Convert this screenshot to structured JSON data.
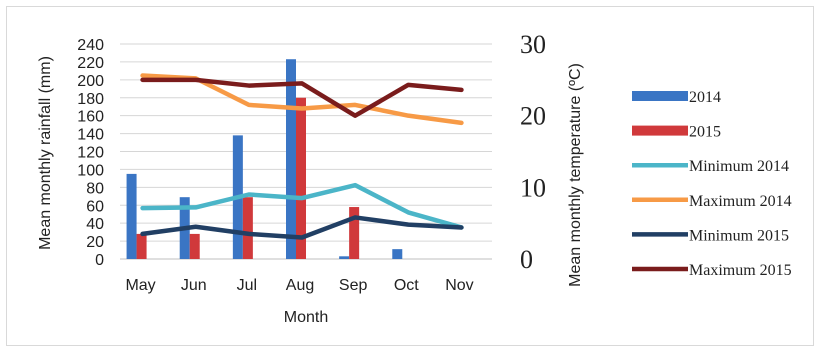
{
  "chart_data": {
    "type": "bar+line",
    "categories": [
      "May",
      "Jun",
      "Jul",
      "Aug",
      "Sep",
      "Oct",
      "Nov"
    ],
    "xlabel": "Month",
    "ylabel": "Mean monthly rainfall (mm)",
    "y2label": "Mean monthly temperature (ºC)",
    "ylim": [
      0,
      240
    ],
    "y2lim": [
      0,
      30
    ],
    "yticks": [
      "0",
      "20",
      "40",
      "60",
      "80",
      "100",
      "120",
      "140",
      "160",
      "180",
      "200",
      "220",
      "240"
    ],
    "y2ticks": [
      "0",
      "10",
      "20",
      "30"
    ],
    "grid": true,
    "legend_position": "right",
    "bar_series": [
      {
        "name": "2014",
        "color": "#3a75c4",
        "values": [
          95,
          69,
          138,
          223,
          3,
          11,
          0
        ]
      },
      {
        "name": "2015",
        "color": "#d0393b",
        "values": [
          28,
          28,
          69,
          180,
          58,
          0,
          0
        ]
      }
    ],
    "line_series": [
      {
        "name": "Minimum 2014",
        "color": "#4bb5c8",
        "values": [
          7.1,
          7.2,
          9.0,
          8.5,
          10.3,
          6.5,
          4.4
        ]
      },
      {
        "name": "Maximum 2014",
        "color": "#f79a46",
        "values": [
          25.6,
          25.2,
          21.5,
          21.0,
          21.5,
          20.0,
          19.0
        ]
      },
      {
        "name": "Minimum 2015",
        "color": "#213f64",
        "values": [
          3.5,
          4.5,
          3.5,
          3.0,
          5.8,
          4.8,
          4.4
        ]
      },
      {
        "name": "Maximum 2015",
        "color": "#7a1c1c",
        "values": [
          25.0,
          25.0,
          24.2,
          24.5,
          20.0,
          24.3,
          23.6
        ]
      }
    ]
  }
}
